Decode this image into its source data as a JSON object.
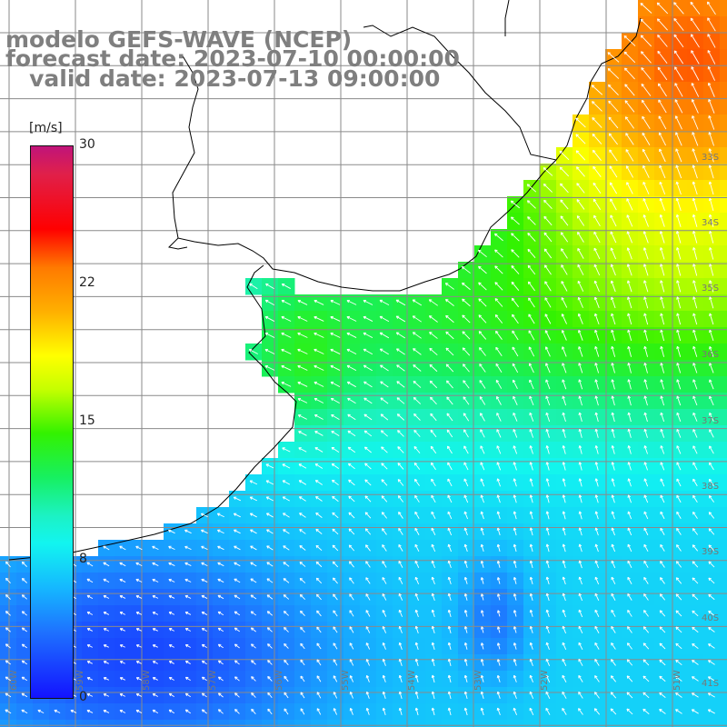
{
  "title": {
    "line1": "modelo GEFS-WAVE (NCEP)",
    "line2": "forecast date: 2023-07-10 00:00:00",
    "line3": "   valid date: 2023-07-13 09:00:00"
  },
  "legend": {
    "unit": "[m/s]",
    "ticks": [
      "30",
      "22",
      "15",
      "8",
      "0"
    ],
    "range": [
      0,
      30
    ]
  },
  "lat_labels": [
    "33S",
    "34S",
    "35S",
    "36S",
    "37S",
    "38S",
    "39S",
    "40S",
    "41S"
  ],
  "lon_labels": [
    "60W",
    "59W",
    "58W",
    "57W",
    "56W",
    "55W",
    "54W",
    "53W",
    "52W",
    "51W"
  ],
  "colors": {
    "title": "#7f7f7f",
    "land": "#ffffff",
    "grid": "#8a8a8a",
    "coast": "#000000",
    "arrows": "#ffffff"
  },
  "field": {
    "variable": "wind speed",
    "units": "m/s",
    "arrow_direction": "from southeast toward northwest (onshore)"
  }
}
